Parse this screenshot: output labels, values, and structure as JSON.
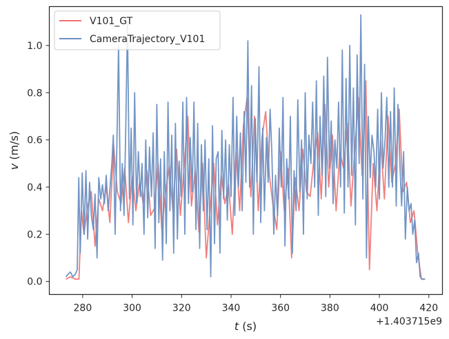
{
  "chart_data": {
    "type": "line",
    "x_unit_suffix": "s",
    "y_unit_suffix": "m/s",
    "xlabel_var": "t",
    "ylabel_var": "v",
    "x_offset_label": "+1.403715e9",
    "xlim": [
      266.5,
      425.5
    ],
    "ylim": [
      -0.055,
      1.165
    ],
    "x_ticks": [
      280,
      300,
      320,
      340,
      360,
      380,
      400,
      420
    ],
    "y_ticks": [
      0.0,
      0.2,
      0.4,
      0.6,
      0.8,
      1.0
    ],
    "x_tick_labels": [
      "280",
      "300",
      "320",
      "340",
      "360",
      "380",
      "400",
      "420"
    ],
    "y_tick_labels": [
      "0.0",
      "0.2",
      "0.4",
      "0.6",
      "0.8",
      "1.0"
    ],
    "grid": false,
    "legend_position": "top-left",
    "colors": {
      "V101_GT": "#f0706e",
      "CameraTrajectory_V101": "#6a8fc2"
    },
    "series": [
      {
        "name": "V101_GT",
        "x": [
          273.2,
          275,
          277,
          278.5,
          279.5,
          280.5,
          282,
          283.5,
          285,
          286.5,
          288,
          289.5,
          291,
          292.5,
          294,
          295.5,
          297,
          298.5,
          300,
          301.5,
          303,
          304.5,
          306,
          307.5,
          309,
          310.5,
          312,
          313.5,
          315,
          316.5,
          318,
          319.5,
          321,
          322.5,
          324,
          325.5,
          327,
          328.5,
          330,
          331.5,
          333,
          334.5,
          336,
          337.5,
          339,
          340.5,
          342,
          343.5,
          345,
          346.5,
          348,
          349.5,
          351,
          352.5,
          354,
          355.5,
          357,
          358.5,
          360,
          361.5,
          363,
          364.5,
          366,
          367.5,
          369,
          370.5,
          372,
          373.5,
          375,
          376.5,
          378,
          379.5,
          381,
          382.5,
          384,
          385.5,
          387,
          388.5,
          390,
          391.5,
          393,
          394.5,
          396,
          397.5,
          399,
          400.5,
          402,
          403.5,
          405,
          406.5,
          408,
          409.5,
          411,
          412.5,
          414,
          415.5,
          417,
          418.5
        ],
        "y": [
          0.01,
          0.02,
          0.01,
          0.01,
          0.3,
          0.2,
          0.32,
          0.38,
          0.15,
          0.35,
          0.3,
          0.4,
          0.25,
          0.58,
          0.38,
          0.33,
          0.48,
          0.25,
          0.45,
          0.3,
          0.42,
          0.33,
          0.47,
          0.28,
          0.31,
          0.5,
          0.22,
          0.38,
          0.49,
          0.3,
          0.56,
          0.28,
          0.48,
          0.7,
          0.32,
          0.47,
          0.21,
          0.5,
          0.1,
          0.3,
          0.5,
          0.24,
          0.45,
          0.33,
          0.41,
          0.2,
          0.55,
          0.3,
          0.66,
          0.78,
          0.36,
          0.7,
          0.3,
          0.61,
          0.72,
          0.45,
          0.32,
          0.22,
          0.55,
          0.3,
          0.48,
          0.1,
          0.44,
          0.3,
          0.56,
          0.38,
          0.36,
          0.52,
          0.63,
          0.35,
          0.75,
          0.4,
          0.62,
          0.3,
          0.55,
          0.48,
          0.67,
          0.32,
          0.55,
          0.78,
          0.45,
          0.85,
          0.05,
          0.5,
          0.3,
          0.6,
          0.35,
          0.7,
          0.42,
          0.5,
          0.73,
          0.38,
          0.42,
          0.25,
          0.3,
          0.12,
          0.01,
          0.01
        ]
      },
      {
        "name": "CameraTrajectory_V101",
        "x": [
          273.2,
          274,
          275,
          276,
          277,
          277.8,
          278.4,
          279,
          279.8,
          280.6,
          281.3,
          282,
          282.8,
          283.5,
          284.3,
          285,
          285.8,
          286.5,
          287.3,
          288,
          288.8,
          289.5,
          290.3,
          291,
          291.8,
          292.4,
          293.1,
          293.8,
          294.5,
          295.3,
          296,
          296.7,
          297.4,
          298.1,
          298.9,
          299.6,
          300.3,
          301,
          301.8,
          302.5,
          303.3,
          304,
          304.8,
          305.5,
          306.3,
          307,
          307.8,
          308.5,
          309.3,
          310,
          310.8,
          311.5,
          312.3,
          313,
          313.8,
          314.5,
          315.3,
          316,
          316.8,
          317.5,
          318.3,
          319,
          319.8,
          320.5,
          321.3,
          322,
          322.8,
          323.5,
          324.3,
          325,
          325.8,
          326.5,
          327.3,
          328,
          328.8,
          329.5,
          330.3,
          331,
          331.8,
          332.5,
          333.3,
          334,
          334.8,
          335.5,
          336.3,
          337,
          337.8,
          338.5,
          339.3,
          340,
          340.8,
          341.5,
          342.3,
          343,
          343.8,
          344.5,
          345.3,
          346,
          346.8,
          347.5,
          348.3,
          349,
          349.8,
          350.5,
          351.3,
          352,
          352.8,
          353.5,
          354.3,
          355,
          355.8,
          356.5,
          357.3,
          358,
          358.8,
          359.5,
          360.3,
          361,
          361.8,
          362.5,
          363.3,
          364,
          364.8,
          365.5,
          366.3,
          367,
          367.8,
          368.5,
          369.3,
          370,
          370.8,
          371.5,
          372.3,
          373,
          373.8,
          374.5,
          375.3,
          376,
          376.8,
          377.5,
          378.3,
          379,
          379.8,
          380.5,
          381.3,
          382,
          382.8,
          383.5,
          384.3,
          385,
          385.8,
          386.5,
          387.3,
          388,
          388.8,
          389.5,
          390.3,
          391,
          391.8,
          392.5,
          393.3,
          394,
          394.8,
          395.5,
          396.3,
          397,
          397.8,
          398.5,
          399.3,
          400,
          400.8,
          401.5,
          402.3,
          403,
          403.8,
          404.5,
          405.3,
          406,
          406.8,
          407.5,
          408.3,
          409,
          409.8,
          410.5,
          411.3,
          412,
          412.8,
          413.5,
          414.3,
          415,
          415.8,
          416.5,
          417.3,
          418.5
        ],
        "y": [
          0.02,
          0.03,
          0.04,
          0.02,
          0.03,
          0.05,
          0.44,
          0.12,
          0.46,
          0.2,
          0.47,
          0.18,
          0.42,
          0.28,
          0.22,
          0.37,
          0.1,
          0.44,
          0.35,
          0.41,
          0.33,
          0.45,
          0.3,
          0.39,
          0.5,
          0.62,
          0.2,
          0.57,
          1.0,
          0.3,
          0.5,
          0.28,
          0.64,
          1.1,
          0.35,
          0.65,
          0.24,
          0.8,
          0.33,
          0.55,
          0.36,
          0.5,
          0.2,
          0.6,
          0.27,
          0.57,
          0.36,
          0.63,
          0.14,
          0.75,
          0.25,
          0.52,
          0.09,
          0.55,
          0.16,
          0.76,
          0.3,
          0.62,
          0.12,
          0.67,
          0.18,
          0.51,
          0.36,
          0.76,
          0.2,
          0.78,
          0.33,
          0.61,
          0.38,
          0.76,
          0.22,
          0.67,
          0.14,
          0.58,
          0.3,
          0.6,
          0.22,
          0.52,
          0.02,
          0.66,
          0.16,
          0.52,
          0.55,
          0.12,
          0.64,
          0.35,
          0.6,
          0.26,
          0.58,
          0.36,
          0.78,
          0.28,
          0.7,
          0.4,
          0.63,
          0.3,
          0.72,
          0.42,
          1.02,
          0.4,
          0.83,
          0.2,
          0.69,
          0.42,
          0.91,
          0.25,
          0.65,
          0.3,
          0.61,
          0.42,
          0.73,
          0.55,
          0.2,
          0.45,
          0.28,
          0.65,
          0.4,
          0.78,
          0.15,
          0.52,
          0.35,
          0.7,
          0.12,
          0.47,
          0.3,
          0.77,
          0.38,
          0.6,
          0.2,
          0.8,
          0.35,
          0.62,
          0.5,
          0.76,
          0.4,
          0.85,
          0.28,
          0.7,
          0.45,
          0.87,
          0.36,
          0.95,
          0.48,
          0.68,
          0.33,
          0.6,
          0.48,
          0.76,
          0.4,
          0.98,
          0.29,
          0.86,
          0.4,
          1.0,
          0.45,
          0.82,
          0.24,
          0.96,
          0.5,
          1.13,
          0.35,
          0.92,
          0.1,
          0.7,
          0.44,
          0.62,
          0.55,
          0.4,
          0.73,
          0.35,
          0.8,
          0.48,
          0.6,
          0.78,
          0.4,
          0.72,
          0.4,
          0.82,
          0.32,
          0.75,
          0.5,
          0.32,
          0.55,
          0.18,
          0.4,
          0.3,
          0.33,
          0.2,
          0.26,
          0.08,
          0.12,
          0.02,
          0.01,
          0.01
        ]
      }
    ]
  }
}
